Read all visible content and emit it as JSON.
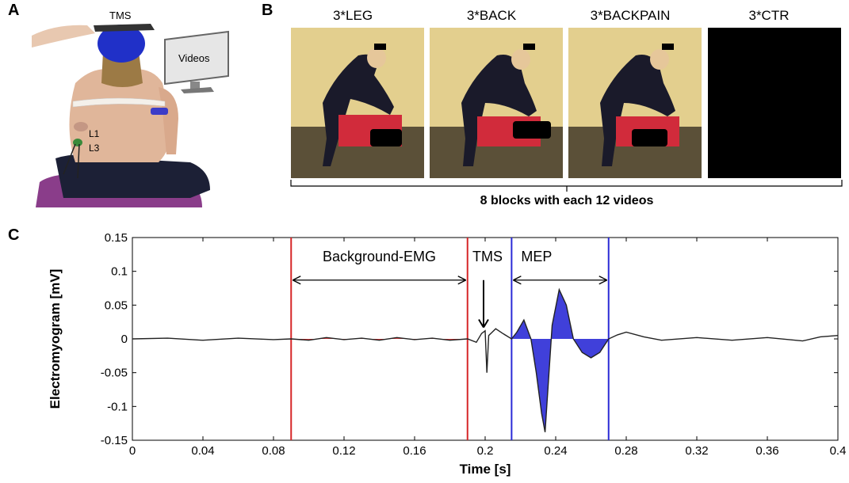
{
  "panels": {
    "a": {
      "letter": "A",
      "tms_label": "TMS",
      "monitor_label": "Videos",
      "electrode_labels": [
        "L1",
        "L3"
      ]
    },
    "b": {
      "letter": "B",
      "conditions": [
        "3*LEG",
        "3*BACK",
        "3*BACKPAIN",
        "3*CTR"
      ],
      "caption": "8 blocks with each 12 videos"
    },
    "c": {
      "letter": "C"
    }
  },
  "colors": {
    "background_window": "#d62728",
    "mep_window": "#2b2bd6",
    "trace": "#222222"
  },
  "chart_data": {
    "type": "line",
    "title": "",
    "xlabel": "Time [s]",
    "ylabel": "Electromyogram [mV]",
    "xlim": [
      0,
      0.4
    ],
    "ylim": [
      -0.15,
      0.15
    ],
    "xticks": [
      "0",
      "0.04",
      "0.08",
      "0.12",
      "0.16",
      "0.2",
      "0.24",
      "0.28",
      "0.32",
      "0.36",
      "0.4"
    ],
    "yticks": [
      "0.15",
      "0.1",
      "0.05",
      "0",
      "-0.05",
      "-0.1",
      "-0.15"
    ],
    "grid": false,
    "annotations": {
      "background_emg": {
        "label": "Background-EMG",
        "start": 0.09,
        "end": 0.19
      },
      "tms": {
        "label": "TMS",
        "time": 0.2
      },
      "mep": {
        "label": "MEP",
        "start": 0.215,
        "end": 0.27
      }
    },
    "series": [
      {
        "x": [
          0,
          0.02,
          0.04,
          0.06,
          0.08,
          0.09,
          0.1,
          0.11,
          0.12,
          0.13,
          0.14,
          0.15,
          0.16,
          0.17,
          0.18,
          0.19,
          0.195,
          0.198,
          0.2,
          0.201,
          0.202,
          0.204,
          0.206,
          0.21,
          0.215,
          0.218,
          0.222,
          0.226,
          0.229,
          0.232,
          0.234,
          0.238,
          0.242,
          0.246,
          0.25,
          0.255,
          0.26,
          0.265,
          0.27,
          0.275,
          0.28,
          0.29,
          0.3,
          0.32,
          0.34,
          0.36,
          0.38,
          0.39,
          0.4
        ],
        "y": [
          0,
          0.001,
          -0.002,
          0.001,
          -0.001,
          0.0,
          -0.002,
          0.002,
          -0.001,
          0.001,
          -0.002,
          0.002,
          -0.001,
          0.001,
          -0.002,
          0.0,
          -0.005,
          0.008,
          0.012,
          -0.05,
          0.005,
          0.01,
          0.015,
          0.008,
          0.0,
          0.01,
          0.028,
          0.0,
          -0.05,
          -0.11,
          -0.138,
          0.02,
          0.073,
          0.05,
          0.0,
          -0.02,
          -0.028,
          -0.02,
          0.0,
          0.006,
          0.01,
          0.003,
          -0.002,
          0.002,
          -0.002,
          0.002,
          -0.003,
          0.003,
          0.005
        ]
      }
    ]
  }
}
